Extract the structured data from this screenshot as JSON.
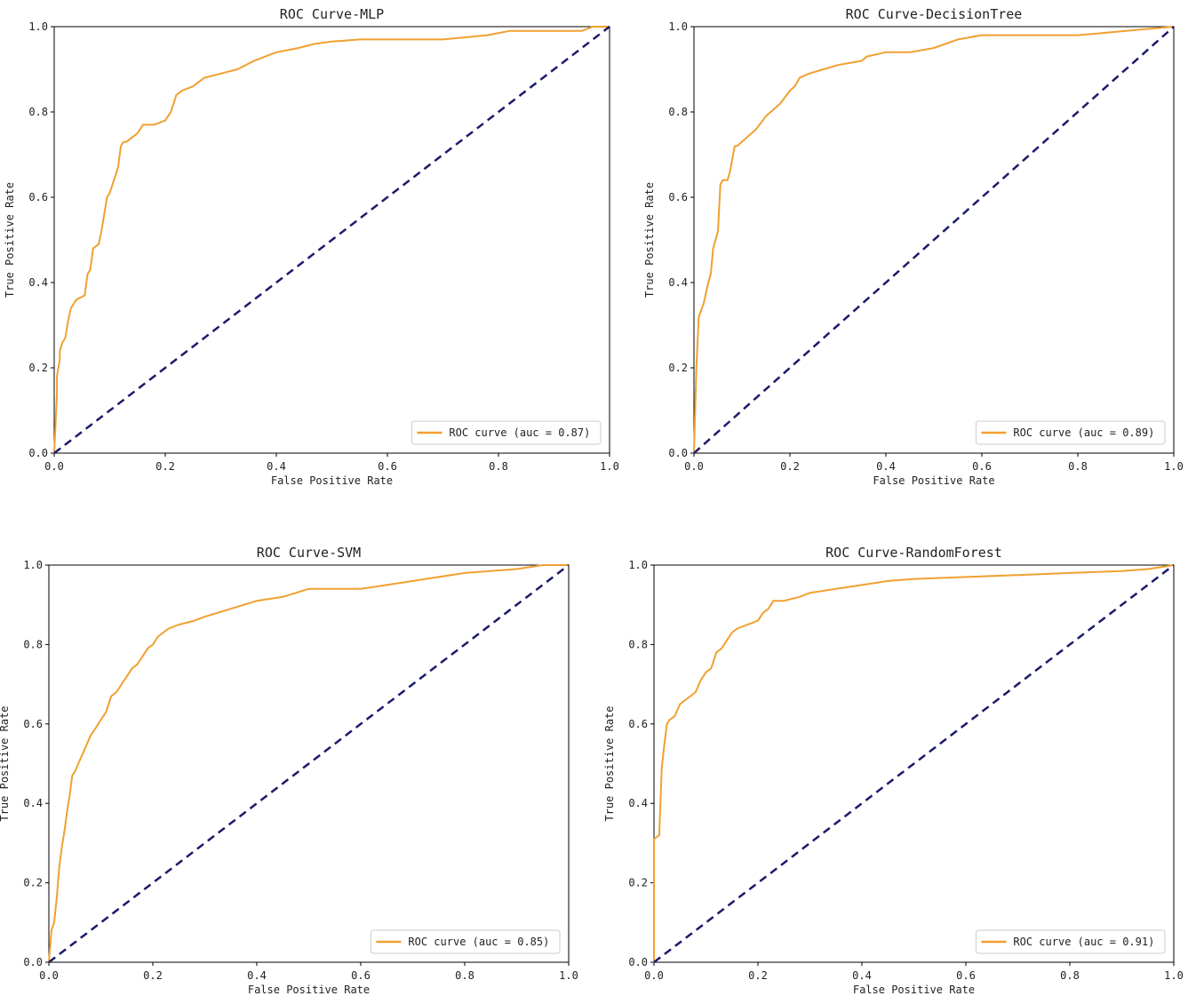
{
  "chart_data": [
    {
      "type": "line",
      "title": "ROC Curve-MLP",
      "xlabel": "False Positive Rate",
      "ylabel": "True Positive Rate",
      "xlim": [
        0.0,
        1.0
      ],
      "ylim": [
        0.0,
        1.0
      ],
      "xticks": [
        "0.0",
        "0.2",
        "0.4",
        "0.6",
        "0.8",
        "1.0"
      ],
      "yticks": [
        "0.0",
        "0.2",
        "0.4",
        "0.6",
        "0.8",
        "1.0"
      ],
      "grid": false,
      "legend": "lower-right",
      "series": [
        {
          "name": "ROC curve (auc = 0.87)",
          "color": "#f0a030",
          "style": "solid",
          "x": [
            0,
            0.005,
            0.005,
            0.01,
            0.01,
            0.015,
            0.02,
            0.025,
            0.03,
            0.035,
            0.04,
            0.055,
            0.06,
            0.065,
            0.07,
            0.08,
            0.085,
            0.09,
            0.095,
            0.1,
            0.11,
            0.115,
            0.12,
            0.125,
            0.13,
            0.14,
            0.15,
            0.16,
            0.17,
            0.18,
            0.2,
            0.21,
            0.22,
            0.23,
            0.25,
            0.27,
            0.3,
            0.33,
            0.36,
            0.4,
            0.44,
            0.47,
            0.5,
            0.55,
            0.6,
            0.7,
            0.74,
            0.78,
            0.82,
            0.9,
            0.95,
            0.97,
            1.0
          ],
          "y": [
            0,
            0.14,
            0.18,
            0.22,
            0.24,
            0.26,
            0.27,
            0.31,
            0.34,
            0.35,
            0.36,
            0.37,
            0.42,
            0.43,
            0.48,
            0.49,
            0.52,
            0.56,
            0.6,
            0.61,
            0.65,
            0.67,
            0.72,
            0.73,
            0.73,
            0.74,
            0.75,
            0.77,
            0.77,
            0.77,
            0.78,
            0.8,
            0.84,
            0.85,
            0.86,
            0.88,
            0.89,
            0.9,
            0.92,
            0.94,
            0.95,
            0.96,
            0.965,
            0.97,
            0.97,
            0.97,
            0.975,
            0.98,
            0.99,
            0.99,
            0.99,
            1.0,
            1.0
          ]
        },
        {
          "name": "",
          "color": "#1b1b6b",
          "style": "dashed",
          "x": [
            0,
            1
          ],
          "y": [
            0,
            1
          ]
        }
      ]
    },
    {
      "type": "line",
      "title": "ROC Curve-DecisionTree",
      "xlabel": "False Positive Rate",
      "ylabel": "True Positive Rate",
      "xlim": [
        0.0,
        1.0
      ],
      "ylim": [
        0.0,
        1.0
      ],
      "xticks": [
        "0.0",
        "0.2",
        "0.4",
        "0.6",
        "0.8",
        "1.0"
      ],
      "yticks": [
        "0.0",
        "0.2",
        "0.4",
        "0.6",
        "0.8",
        "1.0"
      ],
      "grid": false,
      "legend": "lower-right",
      "series": [
        {
          "name": "ROC curve (auc = 0.89)",
          "color": "#f0a030",
          "style": "solid",
          "x": [
            0,
            0.005,
            0.01,
            0.02,
            0.03,
            0.035,
            0.04,
            0.045,
            0.05,
            0.055,
            0.06,
            0.07,
            0.075,
            0.085,
            0.09,
            0.1,
            0.11,
            0.13,
            0.15,
            0.16,
            0.18,
            0.2,
            0.21,
            0.22,
            0.24,
            0.27,
            0.3,
            0.35,
            0.36,
            0.4,
            0.45,
            0.5,
            0.55,
            0.6,
            0.7,
            0.8,
            0.85,
            0.9,
            0.95,
            1.0
          ],
          "y": [
            0,
            0.2,
            0.32,
            0.35,
            0.4,
            0.42,
            0.48,
            0.5,
            0.52,
            0.63,
            0.64,
            0.64,
            0.66,
            0.72,
            0.72,
            0.73,
            0.74,
            0.76,
            0.79,
            0.8,
            0.82,
            0.85,
            0.86,
            0.88,
            0.89,
            0.9,
            0.91,
            0.92,
            0.93,
            0.94,
            0.94,
            0.95,
            0.97,
            0.98,
            0.98,
            0.98,
            0.985,
            0.99,
            0.995,
            1.0
          ]
        },
        {
          "name": "",
          "color": "#1b1b6b",
          "style": "dashed",
          "x": [
            0,
            1
          ],
          "y": [
            0,
            1
          ]
        }
      ]
    },
    {
      "type": "line",
      "title": "ROC Curve-SVM",
      "xlabel": "False Positive Rate",
      "ylabel": "True Positive Rate",
      "xlim": [
        0.0,
        1.0
      ],
      "ylim": [
        0.0,
        1.0
      ],
      "xticks": [
        "0.0",
        "0.2",
        "0.4",
        "0.6",
        "0.8",
        "1.0"
      ],
      "yticks": [
        "0.0",
        "0.2",
        "0.4",
        "0.6",
        "0.8",
        "1.0"
      ],
      "grid": false,
      "legend": "lower-right",
      "series": [
        {
          "name": "ROC curve (auc = 0.85)",
          "color": "#f0a030",
          "style": "solid",
          "x": [
            0,
            0.005,
            0.01,
            0.015,
            0.02,
            0.025,
            0.03,
            0.035,
            0.04,
            0.045,
            0.05,
            0.06,
            0.07,
            0.08,
            0.09,
            0.1,
            0.11,
            0.12,
            0.13,
            0.14,
            0.15,
            0.16,
            0.17,
            0.18,
            0.19,
            0.2,
            0.21,
            0.22,
            0.23,
            0.25,
            0.28,
            0.3,
            0.35,
            0.4,
            0.45,
            0.5,
            0.6,
            0.65,
            0.7,
            0.75,
            0.8,
            0.9,
            0.95,
            1.0
          ],
          "y": [
            0,
            0.08,
            0.1,
            0.16,
            0.24,
            0.29,
            0.33,
            0.38,
            0.42,
            0.47,
            0.48,
            0.51,
            0.54,
            0.57,
            0.59,
            0.61,
            0.63,
            0.67,
            0.68,
            0.7,
            0.72,
            0.74,
            0.75,
            0.77,
            0.79,
            0.8,
            0.82,
            0.83,
            0.84,
            0.85,
            0.86,
            0.87,
            0.89,
            0.91,
            0.92,
            0.94,
            0.94,
            0.95,
            0.96,
            0.97,
            0.98,
            0.99,
            1.0,
            1.0
          ]
        },
        {
          "name": "",
          "color": "#1b1b6b",
          "style": "dashed",
          "x": [
            0,
            1
          ],
          "y": [
            0,
            1
          ]
        }
      ]
    },
    {
      "type": "line",
      "title": "ROC Curve-RandomForest",
      "xlabel": "False Positive Rate",
      "ylabel": "True Positive Rate",
      "xlim": [
        0.0,
        1.0
      ],
      "ylim": [
        0.0,
        1.0
      ],
      "xticks": [
        "0.0",
        "0.2",
        "0.4",
        "0.6",
        "0.8",
        "1.0"
      ],
      "yticks": [
        "0.0",
        "0.2",
        "0.4",
        "0.6",
        "0.8",
        "1.0"
      ],
      "grid": false,
      "legend": "lower-right",
      "series": [
        {
          "name": "ROC curve (auc = 0.91)",
          "color": "#f0a030",
          "style": "solid",
          "x": [
            0,
            0.0,
            0.01,
            0.015,
            0.02,
            0.025,
            0.03,
            0.04,
            0.05,
            0.06,
            0.07,
            0.08,
            0.09,
            0.1,
            0.11,
            0.12,
            0.13,
            0.14,
            0.15,
            0.16,
            0.18,
            0.2,
            0.21,
            0.22,
            0.23,
            0.25,
            0.28,
            0.3,
            0.35,
            0.4,
            0.45,
            0.5,
            0.6,
            0.7,
            0.8,
            0.9,
            0.95,
            1.0
          ],
          "y": [
            0,
            0.31,
            0.32,
            0.49,
            0.55,
            0.6,
            0.61,
            0.62,
            0.65,
            0.66,
            0.67,
            0.68,
            0.71,
            0.73,
            0.74,
            0.78,
            0.79,
            0.81,
            0.83,
            0.84,
            0.85,
            0.86,
            0.88,
            0.89,
            0.91,
            0.91,
            0.92,
            0.93,
            0.94,
            0.95,
            0.96,
            0.965,
            0.97,
            0.975,
            0.98,
            0.985,
            0.99,
            1.0
          ]
        },
        {
          "name": "",
          "color": "#1b1b6b",
          "style": "dashed",
          "x": [
            0,
            1
          ],
          "y": [
            0,
            1
          ]
        }
      ]
    }
  ]
}
